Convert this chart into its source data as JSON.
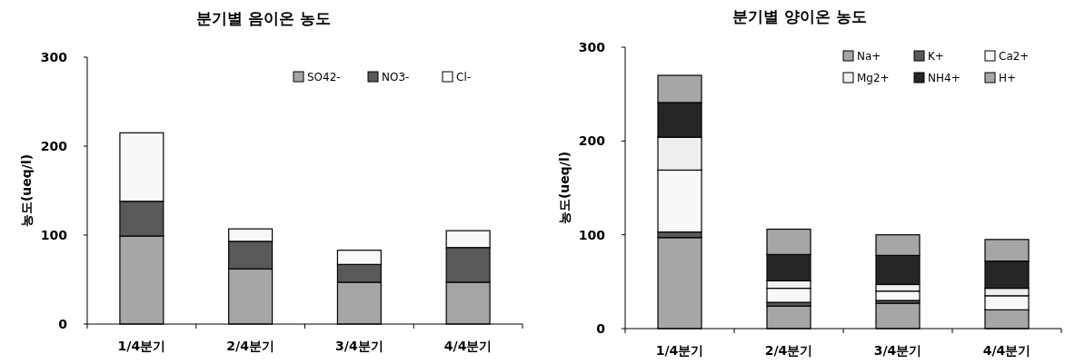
{
  "chart_data": [
    {
      "type": "bar",
      "stacked": true,
      "title": "분기별 음이온 농도",
      "ylabel": "농도(ueq/l)",
      "categories": [
        "1/4분기",
        "2/4분기",
        "3/4분기",
        "4/4분기"
      ],
      "ylim": [
        0,
        300
      ],
      "yticks": [
        0,
        100,
        200,
        300
      ],
      "legend": "top right",
      "series": [
        {
          "name": "SO42-",
          "color": "#a6a6a6",
          "values": [
            99,
            62,
            47,
            47
          ]
        },
        {
          "name": "NO3-",
          "color": "#595959",
          "values": [
            39,
            31,
            20,
            39
          ]
        },
        {
          "name": "Cl-",
          "color": "#f8f8f8",
          "values": [
            77,
            14,
            16,
            19
          ]
        }
      ]
    },
    {
      "type": "bar",
      "stacked": true,
      "title": "분기별 양이온 농도",
      "ylabel": "농도(ueq/l)",
      "categories": [
        "1/4분기",
        "2/4분기",
        "3/4분기",
        "4/4분기"
      ],
      "ylim": [
        0,
        300
      ],
      "yticks": [
        0,
        100,
        200,
        300
      ],
      "legend": "top right",
      "series": [
        {
          "name": "Na+",
          "color": "#a6a6a6",
          "values": [
            97,
            24,
            27,
            20
          ]
        },
        {
          "name": "K+",
          "color": "#595959",
          "values": [
            6,
            4,
            3,
            0
          ]
        },
        {
          "name": "Ca2+",
          "color": "#f8f8f8",
          "values": [
            66,
            15,
            10,
            15
          ]
        },
        {
          "name": "Mg2+",
          "color": "#eeeeee",
          "values": [
            35,
            8,
            7,
            8
          ]
        },
        {
          "name": "NH4+",
          "color": "#262626",
          "values": [
            37,
            28,
            31,
            29
          ]
        },
        {
          "name": "H+",
          "color": "#a6a6a6",
          "values": [
            29,
            27,
            22,
            23
          ]
        }
      ]
    }
  ]
}
